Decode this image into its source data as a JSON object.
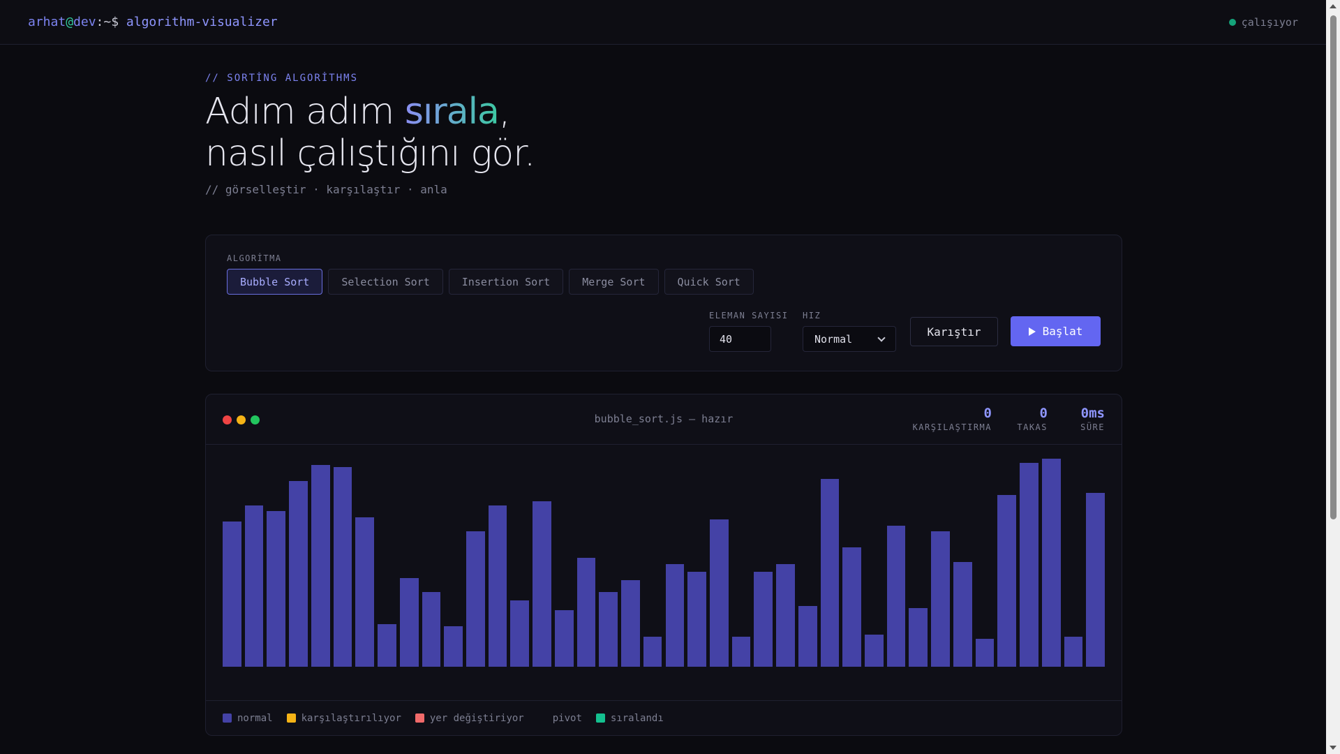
{
  "topbar": {
    "user": "arhat",
    "at": "@",
    "host": "dev",
    "path": ":~$",
    "command": "algorithm-visualizer",
    "status": "çalışıyor"
  },
  "hero": {
    "eyebrow": "// SORTİNG ALGORİTHMS",
    "headline_pre": "Adım adım ",
    "headline_accent": "sırala",
    "headline_post": ",",
    "headline_line2": "nasıl çalıştığını gör.",
    "tagline": "// görselleştir · karşılaştır · anla"
  },
  "controls": {
    "algorithm_label": "ALGORİTMA",
    "algorithms": [
      {
        "label": "Bubble Sort",
        "active": true
      },
      {
        "label": "Selection Sort",
        "active": false
      },
      {
        "label": "Insertion Sort",
        "active": false
      },
      {
        "label": "Merge Sort",
        "active": false
      },
      {
        "label": "Quick Sort",
        "active": false
      }
    ],
    "count_label": "ELEMAN SAYISI",
    "count_value": "40",
    "speed_label": "HIZ",
    "speed_value": "Normal",
    "shuffle_label": "Karıştır",
    "start_label": "Başlat"
  },
  "visualizer": {
    "title": "bubble_sort.js — hazır",
    "stats": {
      "comparisons_value": "0",
      "comparisons_label": "KARŞILAŞTIRMA",
      "swaps_value": "0",
      "swaps_label": "TAKAS",
      "time_value": "0ms",
      "time_label": "SÜRE"
    },
    "window_dot_colors": [
      "#ef4444",
      "#f5b316",
      "#22c55e"
    ],
    "bar_color": "#4442a6",
    "bar_values": [
      72,
      80,
      77,
      92,
      100,
      99,
      74,
      21,
      44,
      37,
      20,
      67,
      80,
      33,
      82,
      28,
      54,
      37,
      43,
      15,
      51,
      47,
      73,
      15,
      47,
      51,
      30,
      93,
      59,
      16,
      70,
      29,
      67,
      52,
      14,
      85,
      101,
      103,
      15,
      86
    ],
    "legend": [
      {
        "label": "normal",
        "color": "#4442a6"
      },
      {
        "label": "karşılaştırılıyor",
        "color": "#f5b316"
      },
      {
        "label": "yer değiştiriyor",
        "color": "#f06a6a"
      },
      {
        "label": "pivot",
        "color": ""
      },
      {
        "label": "sıralandı",
        "color": "#14c08f"
      }
    ]
  }
}
